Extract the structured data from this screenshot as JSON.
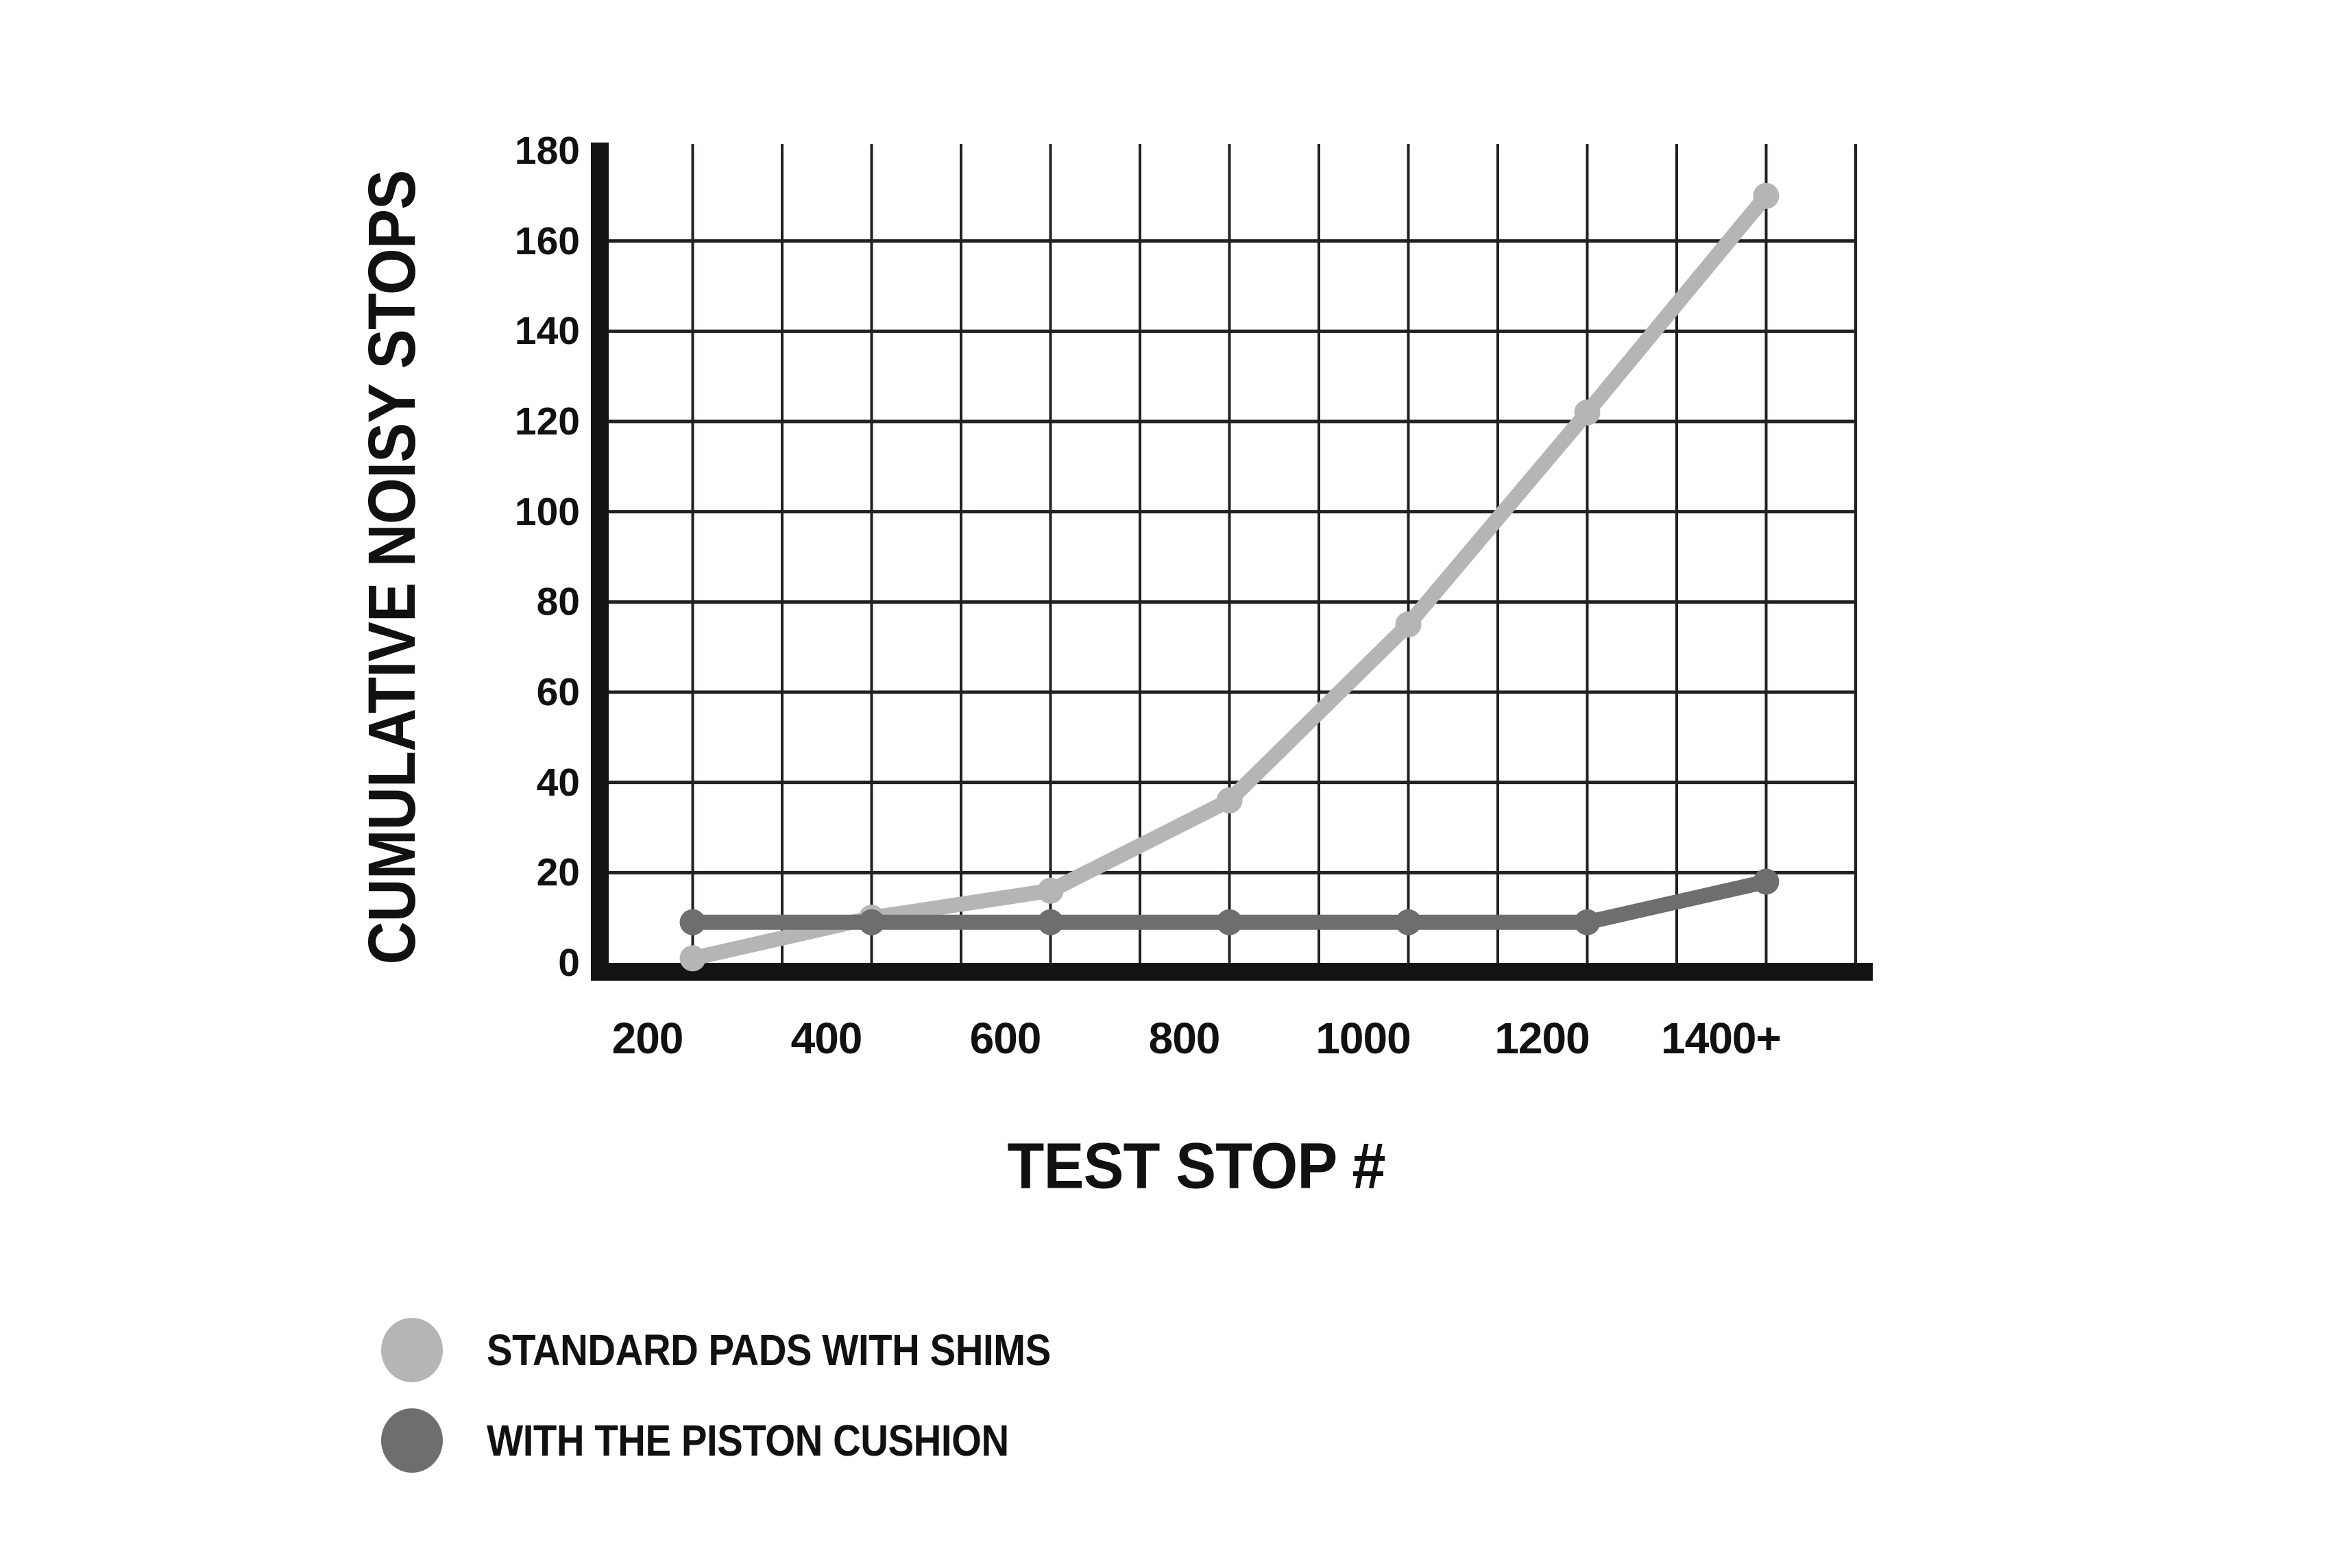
{
  "page": {
    "background": "#ffffff"
  },
  "chart_data": {
    "type": "line",
    "title": "",
    "xlabel": "TEST STOP #",
    "ylabel": "CUMULATIVE NOISY STOPS",
    "categories": [
      "200",
      "400",
      "600",
      "800",
      "1000",
      "1200",
      "1400+"
    ],
    "y_tick_labels": [
      "0",
      "20",
      "40",
      "60",
      "80",
      "100",
      "120",
      "140",
      "160",
      "180"
    ],
    "ylim": [
      0,
      180
    ],
    "y_tick_step": 20,
    "grid": true,
    "legend_position": "bottom-left",
    "series": [
      {
        "name": "STANDARD PADS WITH SHIMS",
        "color": "#b5b5b5",
        "values": [
          1,
          10,
          16,
          36,
          75,
          122,
          170
        ]
      },
      {
        "name": "WITH THE PISTON CUSHION",
        "color": "#6e6e6e",
        "values": [
          9,
          9,
          9,
          9,
          9,
          9,
          18
        ]
      }
    ]
  },
  "colors": {
    "grid": "#242021",
    "axis": "#161314",
    "text": "#111111",
    "background": "#ffffff"
  }
}
